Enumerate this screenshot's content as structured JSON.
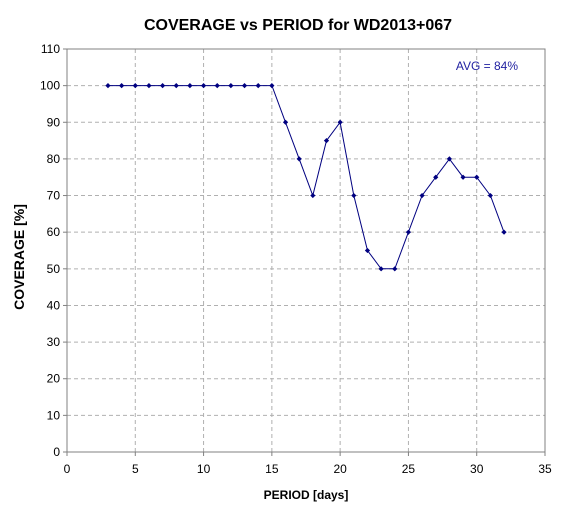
{
  "chart_data": {
    "type": "line",
    "title": "COVERAGE vs PERIOD for WD2013+067",
    "xlabel": "PERIOD [days]",
    "ylabel": "COVERAGE [%]",
    "xlim": [
      0,
      35
    ],
    "ylim": [
      0,
      110
    ],
    "xticks": [
      0,
      5,
      10,
      15,
      20,
      25,
      30,
      35
    ],
    "yticks": [
      0,
      10,
      20,
      30,
      40,
      50,
      60,
      70,
      80,
      90,
      100,
      110
    ],
    "grid": true,
    "annotation": "AVG = 84%",
    "series": [
      {
        "x": [
          3,
          4,
          5,
          6,
          7,
          8,
          9,
          10,
          11,
          12,
          13,
          14,
          15,
          16,
          17,
          18,
          19,
          20,
          21,
          22,
          23,
          24,
          25,
          26,
          27,
          28,
          29,
          30,
          31,
          32
        ],
        "y": [
          100,
          100,
          100,
          100,
          100,
          100,
          100,
          100,
          100,
          100,
          100,
          100,
          100,
          90,
          80,
          70,
          85,
          90,
          70,
          55,
          50,
          50,
          60,
          70,
          75,
          80,
          75,
          75,
          70,
          60
        ]
      }
    ],
    "colors": {
      "line": "#000080",
      "marker": "#000080",
      "annotation": "#1f1fa0",
      "grid": "#b0b0b0",
      "axis": "#808080",
      "text": "#000000"
    }
  }
}
